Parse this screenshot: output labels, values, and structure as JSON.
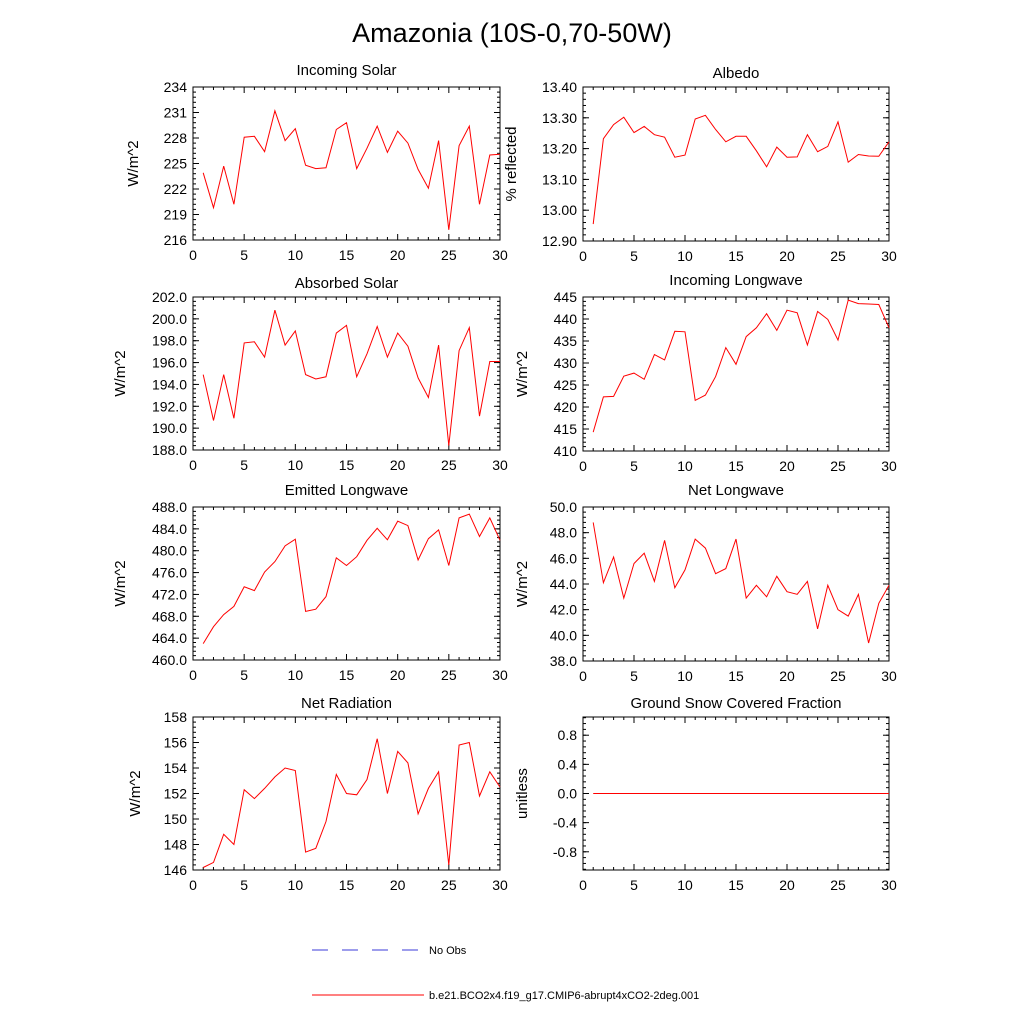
{
  "figure": {
    "title": "Amazonia (10S-0,70-50W)"
  },
  "legend": {
    "items": [
      {
        "label": "No Obs",
        "color": "#3b3bd9",
        "style": "dashed"
      },
      {
        "label": "b.e21.BCO2x4.f19_g17.CMIP6-abrupt4xCO2-2deg.001",
        "color": "#ff0000",
        "style": "solid"
      }
    ]
  },
  "chart_data": [
    {
      "type": "line",
      "title": "Incoming Solar",
      "ylabel": "W/m^2",
      "xlim": [
        0,
        30
      ],
      "ylim": [
        216,
        234
      ],
      "xticks": [
        0,
        5,
        10,
        15,
        20,
        25,
        30
      ],
      "yticks": [
        216,
        219,
        222,
        225,
        228,
        231,
        234
      ],
      "ytick_labels": [
        "216",
        "219",
        "222",
        "225",
        "228",
        "231",
        "234"
      ],
      "series": [
        {
          "color": "#ff0000",
          "x": [
            1,
            2,
            3,
            4,
            5,
            6,
            7,
            8,
            9,
            10,
            11,
            12,
            13,
            14,
            15,
            16,
            17,
            18,
            19,
            20,
            21,
            22,
            23,
            24,
            25,
            26,
            27,
            28,
            29,
            30
          ],
          "values": [
            223.9,
            219.8,
            224.7,
            220.2,
            228.1,
            228.2,
            226.4,
            231.2,
            227.7,
            229.1,
            224.8,
            224.4,
            224.5,
            229.0,
            229.8,
            224.4,
            226.8,
            229.4,
            226.3,
            228.8,
            227.4,
            224.3,
            222.1,
            227.7,
            217.2,
            227.1,
            229.4,
            220.2,
            226.0,
            226.1
          ]
        }
      ]
    },
    {
      "type": "line",
      "title": "Albedo",
      "ylabel": "% reflected",
      "xlim": [
        0,
        30
      ],
      "ylim": [
        12.9,
        13.4
      ],
      "xticks": [
        0,
        5,
        10,
        15,
        20,
        25,
        30
      ],
      "yticks": [
        12.9,
        13.0,
        13.1,
        13.2,
        13.3,
        13.4
      ],
      "ytick_labels": [
        "12.90",
        "13.00",
        "13.10",
        "13.20",
        "13.30",
        "13.40"
      ],
      "series": [
        {
          "color": "#ff0000",
          "x": [
            1,
            2,
            3,
            4,
            5,
            6,
            7,
            8,
            9,
            10,
            11,
            12,
            13,
            14,
            15,
            16,
            17,
            18,
            19,
            20,
            21,
            22,
            23,
            24,
            25,
            26,
            27,
            28,
            29,
            30
          ],
          "values": [
            12.955,
            13.232,
            13.278,
            13.302,
            13.252,
            13.272,
            13.245,
            13.237,
            13.172,
            13.179,
            13.296,
            13.308,
            13.262,
            13.222,
            13.24,
            13.24,
            13.193,
            13.141,
            13.205,
            13.172,
            13.173,
            13.245,
            13.19,
            13.207,
            13.287,
            13.156,
            13.181,
            13.176,
            13.175,
            13.222
          ]
        }
      ]
    },
    {
      "type": "line",
      "title": "Absorbed Solar",
      "ylabel": "W/m^2",
      "xlim": [
        0,
        30
      ],
      "ylim": [
        188,
        202
      ],
      "xticks": [
        0,
        5,
        10,
        15,
        20,
        25,
        30
      ],
      "yticks": [
        188,
        190,
        192,
        194,
        196,
        198,
        200,
        202
      ],
      "ytick_labels": [
        "188.0",
        "190.0",
        "192.0",
        "194.0",
        "196.0",
        "198.0",
        "200.0",
        "202.0"
      ],
      "series": [
        {
          "color": "#ff0000",
          "x": [
            1,
            2,
            3,
            4,
            5,
            6,
            7,
            8,
            9,
            10,
            11,
            12,
            13,
            14,
            15,
            16,
            17,
            18,
            19,
            20,
            21,
            22,
            23,
            24,
            25,
            26,
            27,
            28,
            29,
            30
          ],
          "values": [
            194.9,
            190.7,
            194.9,
            190.9,
            197.8,
            197.9,
            196.5,
            200.8,
            197.6,
            198.9,
            194.9,
            194.5,
            194.7,
            198.7,
            199.4,
            194.7,
            196.8,
            199.3,
            196.5,
            198.7,
            197.5,
            194.6,
            192.8,
            197.6,
            188.4,
            197.1,
            199.2,
            191.1,
            196.1,
            196.1
          ]
        }
      ]
    },
    {
      "type": "line",
      "title": "Incoming Longwave",
      "ylabel": "W/m^2",
      "xlim": [
        0,
        30
      ],
      "ylim": [
        410,
        445
      ],
      "xticks": [
        0,
        5,
        10,
        15,
        20,
        25,
        30
      ],
      "yticks": [
        410,
        415,
        420,
        425,
        430,
        435,
        440,
        445
      ],
      "ytick_labels": [
        "410",
        "415",
        "420",
        "425",
        "430",
        "435",
        "440",
        "445"
      ],
      "series": [
        {
          "color": "#ff0000",
          "x": [
            1,
            2,
            3,
            4,
            5,
            6,
            7,
            8,
            9,
            10,
            11,
            12,
            13,
            14,
            15,
            16,
            17,
            18,
            19,
            20,
            21,
            22,
            23,
            24,
            25,
            26,
            27,
            28,
            29,
            30
          ],
          "values": [
            414.3,
            422.3,
            422.4,
            427.0,
            427.7,
            426.3,
            431.9,
            430.7,
            437.2,
            437.1,
            421.5,
            422.7,
            426.9,
            433.5,
            429.7,
            436.0,
            438.0,
            441.2,
            437.4,
            442.0,
            441.4,
            434.1,
            441.7,
            439.9,
            435.2,
            444.3,
            443.5,
            443.4,
            443.3,
            438.0
          ]
        }
      ]
    },
    {
      "type": "line",
      "title": "Emitted Longwave",
      "ylabel": "W/m^2",
      "xlim": [
        0,
        30
      ],
      "ylim": [
        460,
        488
      ],
      "xticks": [
        0,
        5,
        10,
        15,
        20,
        25,
        30
      ],
      "yticks": [
        460,
        464,
        468,
        472,
        476,
        480,
        484,
        488
      ],
      "ytick_labels": [
        "460.0",
        "464.0",
        "468.0",
        "472.0",
        "476.0",
        "480.0",
        "484.0",
        "488.0"
      ],
      "series": [
        {
          "color": "#ff0000",
          "x": [
            1,
            2,
            3,
            4,
            5,
            6,
            7,
            8,
            9,
            10,
            11,
            12,
            13,
            14,
            15,
            16,
            17,
            18,
            19,
            20,
            21,
            22,
            23,
            24,
            25,
            26,
            27,
            28,
            29,
            30
          ],
          "values": [
            463.0,
            466.1,
            468.3,
            469.8,
            473.4,
            472.7,
            476.1,
            478.0,
            480.9,
            482.1,
            468.9,
            469.3,
            471.6,
            478.7,
            477.3,
            478.9,
            481.9,
            484.1,
            482.0,
            485.4,
            484.6,
            478.3,
            482.2,
            483.8,
            477.3,
            486.0,
            486.7,
            482.6,
            486.0,
            481.9
          ]
        }
      ]
    },
    {
      "type": "line",
      "title": "Net Longwave",
      "ylabel": "W/m^2",
      "xlim": [
        0,
        30
      ],
      "ylim": [
        38,
        50
      ],
      "xticks": [
        0,
        5,
        10,
        15,
        20,
        25,
        30
      ],
      "yticks": [
        38,
        40,
        42,
        44,
        46,
        48,
        50
      ],
      "ytick_labels": [
        "38.0",
        "40.0",
        "42.0",
        "44.0",
        "46.0",
        "48.0",
        "50.0"
      ],
      "series": [
        {
          "color": "#ff0000",
          "x": [
            1,
            2,
            3,
            4,
            5,
            6,
            7,
            8,
            9,
            10,
            11,
            12,
            13,
            14,
            15,
            16,
            17,
            18,
            19,
            20,
            21,
            22,
            23,
            24,
            25,
            26,
            27,
            28,
            29,
            30
          ],
          "values": [
            48.8,
            44.1,
            46.1,
            42.9,
            45.6,
            46.4,
            44.2,
            47.4,
            43.7,
            45.1,
            47.5,
            46.8,
            44.8,
            45.2,
            47.5,
            42.9,
            43.9,
            43.0,
            44.6,
            43.4,
            43.2,
            44.2,
            40.5,
            43.9,
            42.0,
            41.5,
            43.2,
            39.4,
            42.5,
            43.9
          ]
        }
      ]
    },
    {
      "type": "line",
      "title": "Net Radiation",
      "ylabel": "W/m^2",
      "xlim": [
        0,
        30
      ],
      "ylim": [
        146,
        158
      ],
      "xticks": [
        0,
        5,
        10,
        15,
        20,
        25,
        30
      ],
      "yticks": [
        146,
        148,
        150,
        152,
        154,
        156,
        158
      ],
      "ytick_labels": [
        "146",
        "148",
        "150",
        "152",
        "154",
        "156",
        "158"
      ],
      "series": [
        {
          "color": "#ff0000",
          "x": [
            1,
            2,
            3,
            4,
            5,
            6,
            7,
            8,
            9,
            10,
            11,
            12,
            13,
            14,
            15,
            16,
            17,
            18,
            19,
            20,
            21,
            22,
            23,
            24,
            25,
            26,
            27,
            28,
            29,
            30
          ],
          "values": [
            146.2,
            146.6,
            148.8,
            148.0,
            152.3,
            151.6,
            152.4,
            153.3,
            154.0,
            153.8,
            147.4,
            147.7,
            149.8,
            153.5,
            152.0,
            151.9,
            153.1,
            156.3,
            152.0,
            155.3,
            154.4,
            150.4,
            152.4,
            153.7,
            146.4,
            155.8,
            156.0,
            151.8,
            153.7,
            152.5
          ]
        }
      ]
    },
    {
      "type": "line",
      "title": "Ground Snow Covered Fraction",
      "ylabel": "unitless",
      "xlim": [
        0,
        30
      ],
      "ylim": [
        -1.05,
        1.05
      ],
      "xticks": [
        0,
        5,
        10,
        15,
        20,
        25,
        30
      ],
      "yticks": [
        -0.8,
        -0.4,
        0.0,
        0.4,
        0.8
      ],
      "ytick_labels": [
        "-0.8",
        "-0.4",
        "0.0",
        "0.4",
        "0.8"
      ],
      "series": [
        {
          "color": "#ff0000",
          "x": [
            1,
            2,
            3,
            4,
            5,
            6,
            7,
            8,
            9,
            10,
            11,
            12,
            13,
            14,
            15,
            16,
            17,
            18,
            19,
            20,
            21,
            22,
            23,
            24,
            25,
            26,
            27,
            28,
            29,
            30
          ],
          "values": [
            0,
            0,
            0,
            0,
            0,
            0,
            0,
            0,
            0,
            0,
            0,
            0,
            0,
            0,
            0,
            0,
            0,
            0,
            0,
            0,
            0,
            0,
            0,
            0,
            0,
            0,
            0,
            0,
            0,
            0
          ]
        }
      ]
    }
  ]
}
